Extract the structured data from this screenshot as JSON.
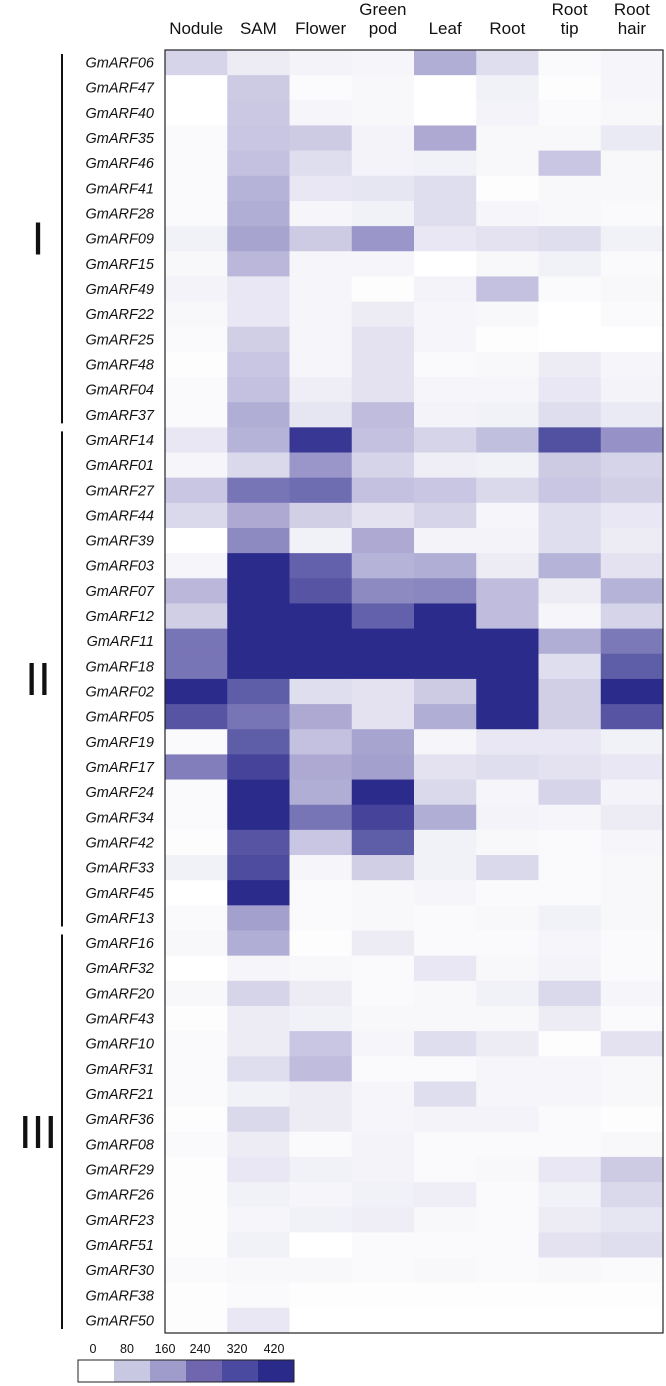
{
  "chart_data": {
    "type": "heatmap",
    "columns": [
      [
        "Nodule"
      ],
      [
        "SAM"
      ],
      [
        "Flower"
      ],
      [
        "Green",
        "pod"
      ],
      [
        "Leaf"
      ],
      [
        "Root"
      ],
      [
        "Root",
        "tip"
      ],
      [
        "Root",
        "hair"
      ]
    ],
    "groups": [
      {
        "label": "I",
        "rows": [
          "GmARF06",
          "GmARF47",
          "GmARF40",
          "GmARF35",
          "GmARF46",
          "GmARF41",
          "GmARF28",
          "GmARF09",
          "GmARF15",
          "GmARF49",
          "GmARF22",
          "GmARF25",
          "GmARF48",
          "GmARF04",
          "GmARF37"
        ]
      },
      {
        "label": "II",
        "rows": [
          "GmARF14",
          "GmARF01",
          "GmARF27",
          "GmARF44",
          "GmARF39",
          "GmARF03",
          "GmARF07",
          "GmARF12",
          "GmARF11",
          "GmARF18",
          "GmARF02",
          "GmARF05",
          "GmARF19",
          "GmARF17",
          "GmARF24",
          "GmARF34",
          "GmARF42",
          "GmARF33",
          "GmARF45",
          "GmARF13"
        ]
      },
      {
        "label": "III",
        "rows": [
          "GmARF16",
          "GmARF32",
          "GmARF20",
          "GmARF43",
          "GmARF10",
          "GmARF31",
          "GmARF21",
          "GmARF36",
          "GmARF08",
          "GmARF29",
          "GmARF26",
          "GmARF23",
          "GmARF51",
          "GmARF30",
          "GmARF38",
          "GmARF50"
        ]
      }
    ],
    "values": [
      [
        90,
        40,
        25,
        20,
        170,
        70,
        10,
        20
      ],
      [
        0,
        110,
        8,
        15,
        0,
        30,
        5,
        20
      ],
      [
        0,
        115,
        20,
        15,
        0,
        25,
        10,
        15
      ],
      [
        10,
        120,
        110,
        25,
        180,
        15,
        15,
        45
      ],
      [
        10,
        130,
        70,
        25,
        30,
        15,
        120,
        15
      ],
      [
        10,
        160,
        50,
        55,
        70,
        5,
        15,
        15
      ],
      [
        10,
        170,
        20,
        30,
        70,
        20,
        15,
        10
      ],
      [
        30,
        190,
        110,
        220,
        50,
        60,
        70,
        30
      ],
      [
        15,
        150,
        20,
        20,
        0,
        15,
        30,
        10
      ],
      [
        25,
        50,
        20,
        5,
        25,
        130,
        10,
        15
      ],
      [
        15,
        50,
        20,
        40,
        20,
        15,
        0,
        10
      ],
      [
        10,
        100,
        20,
        60,
        20,
        5,
        0,
        0
      ],
      [
        5,
        120,
        20,
        60,
        10,
        15,
        40,
        20
      ],
      [
        10,
        130,
        35,
        60,
        20,
        20,
        50,
        25
      ],
      [
        10,
        170,
        55,
        140,
        25,
        30,
        70,
        45
      ],
      [
        50,
        160,
        450,
        130,
        90,
        135,
        390,
        230
      ],
      [
        20,
        80,
        220,
        90,
        35,
        30,
        110,
        90
      ],
      [
        120,
        300,
        320,
        130,
        120,
        80,
        120,
        100
      ],
      [
        80,
        180,
        100,
        60,
        90,
        20,
        70,
        50
      ],
      [
        0,
        250,
        30,
        180,
        25,
        25,
        70,
        40
      ],
      [
        20,
        480,
        350,
        160,
        170,
        40,
        160,
        60
      ],
      [
        150,
        480,
        380,
        250,
        260,
        140,
        40,
        160
      ],
      [
        100,
        480,
        480,
        350,
        480,
        140,
        20,
        90
      ],
      [
        300,
        480,
        480,
        480,
        480,
        480,
        170,
        290
      ],
      [
        300,
        480,
        480,
        480,
        480,
        480,
        70,
        360
      ],
      [
        480,
        360,
        70,
        60,
        110,
        480,
        100,
        480
      ],
      [
        380,
        300,
        180,
        60,
        170,
        480,
        100,
        380
      ],
      [
        10,
        360,
        130,
        190,
        20,
        50,
        50,
        30
      ],
      [
        280,
        420,
        180,
        200,
        60,
        70,
        60,
        50
      ],
      [
        10,
        480,
        170,
        480,
        80,
        20,
        90,
        25
      ],
      [
        10,
        480,
        300,
        420,
        170,
        25,
        20,
        40
      ],
      [
        5,
        380,
        120,
        360,
        30,
        15,
        10,
        20
      ],
      [
        30,
        400,
        20,
        100,
        30,
        80,
        10,
        15
      ],
      [
        0,
        480,
        10,
        15,
        20,
        10,
        10,
        15
      ],
      [
        10,
        200,
        10,
        15,
        10,
        15,
        30,
        15
      ],
      [
        15,
        170,
        5,
        40,
        10,
        10,
        20,
        10
      ],
      [
        0,
        20,
        15,
        10,
        50,
        15,
        25,
        10
      ],
      [
        15,
        90,
        40,
        10,
        15,
        30,
        80,
        20
      ],
      [
        5,
        40,
        30,
        15,
        15,
        15,
        40,
        10
      ],
      [
        10,
        40,
        120,
        20,
        70,
        40,
        5,
        60
      ],
      [
        10,
        70,
        140,
        10,
        10,
        20,
        20,
        15
      ],
      [
        10,
        30,
        40,
        20,
        70,
        20,
        20,
        15
      ],
      [
        5,
        80,
        40,
        20,
        25,
        25,
        10,
        5
      ],
      [
        10,
        40,
        10,
        25,
        10,
        10,
        10,
        15
      ],
      [
        5,
        50,
        30,
        25,
        10,
        15,
        50,
        110
      ],
      [
        5,
        30,
        20,
        30,
        35,
        10,
        30,
        80
      ],
      [
        5,
        20,
        30,
        35,
        15,
        10,
        40,
        55
      ],
      [
        5,
        30,
        0,
        10,
        10,
        10,
        60,
        70
      ],
      [
        10,
        15,
        15,
        10,
        15,
        10,
        15,
        10
      ],
      [
        5,
        10,
        5,
        5,
        5,
        5,
        5,
        5
      ],
      [
        5,
        50,
        0,
        0,
        0,
        0,
        0,
        0
      ]
    ],
    "legend": {
      "ticks": [
        "0",
        "80",
        "160",
        "240",
        "320",
        "420"
      ],
      "colors": [
        "#ffffff",
        "#c8c8e2",
        "#9f9ccb",
        "#7065af",
        "#4a4aa0",
        "#2a2a8a"
      ]
    },
    "vmax": 480,
    "colors": {
      "low": "#ffffff",
      "mid": "#9c98ca",
      "high": "#2b2b8c",
      "border": "#222222"
    }
  }
}
